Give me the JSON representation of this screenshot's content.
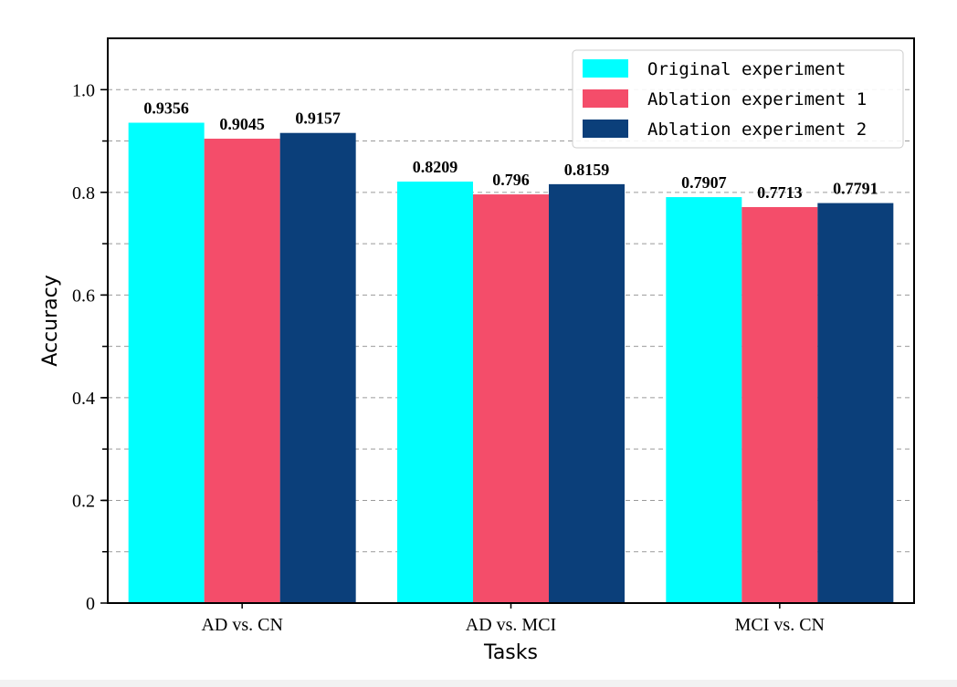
{
  "chart_data": {
    "type": "bar",
    "xlabel": "Tasks",
    "ylabel": "Accuracy",
    "categories": [
      "AD vs. CN",
      "AD vs. MCI",
      "MCI vs. CN"
    ],
    "series": [
      {
        "name": "Original experiment",
        "color": "#00ffff",
        "values": [
          0.9356,
          0.8209,
          0.7907
        ],
        "labels": [
          "0.9356",
          "0.8209",
          "0.7907"
        ]
      },
      {
        "name": "Ablation experiment 1",
        "color": "#f44d6a",
        "values": [
          0.9045,
          0.796,
          0.7713
        ],
        "labels": [
          "0.9045",
          "0.796",
          "0.7713"
        ]
      },
      {
        "name": "Ablation experiment 2",
        "color": "#0b3f7a",
        "values": [
          0.9157,
          0.8159,
          0.7791
        ],
        "labels": [
          "0.9157",
          "0.8159",
          "0.7791"
        ]
      }
    ],
    "ylim": [
      0,
      1.1
    ],
    "yticks": [
      0,
      0.2,
      0.4,
      0.6,
      0.8,
      1.0
    ],
    "ytick_labels": [
      "0",
      "0.2",
      "0.4",
      "0.6",
      "0.8",
      "1.0"
    ],
    "grid": "horizontal dashed",
    "legend_position": "top-right"
  }
}
